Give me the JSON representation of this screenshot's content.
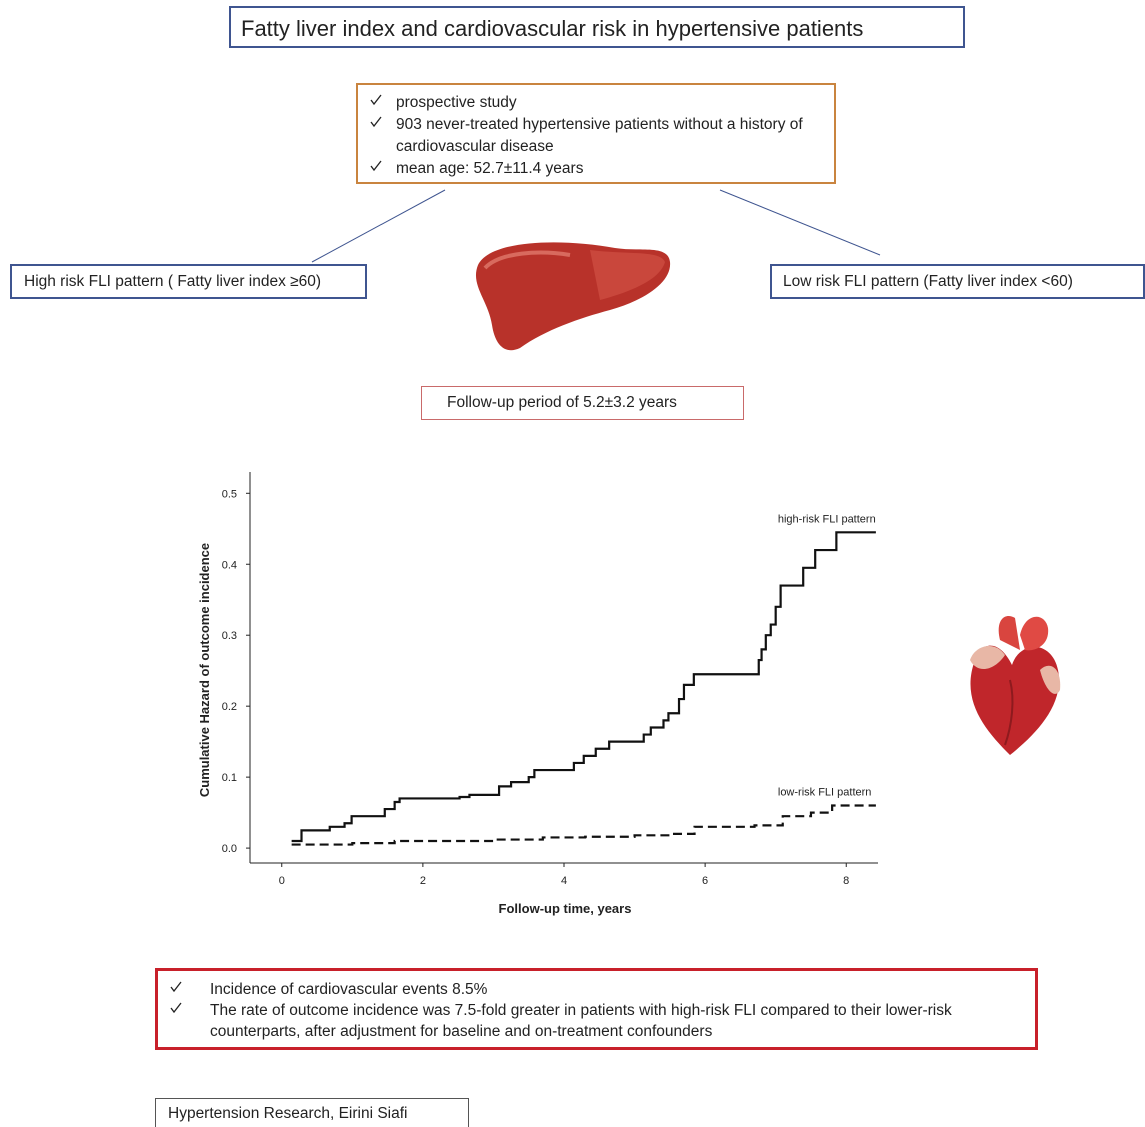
{
  "title": "Fatty liver index and cardiovascular risk in hypertensive patients",
  "study_box": {
    "items": [
      "prospective study",
      "903 never-treated hypertensive patients without a history of cardiovascular disease",
      "mean age: 52.7±11.4 years"
    ]
  },
  "high_risk_box": "High risk FLI pattern ( Fatty liver index ≥60)",
  "low_risk_box": "Low risk FLI pattern (Fatty liver index <60)",
  "follow_up": "Follow-up period of 5.2±3.2 years",
  "chart_data": {
    "type": "line",
    "drawstyle": "steps-post",
    "x_label": "Follow-up time, years",
    "y_label": "Cumulative Hazard of outcome incidence",
    "xlim": [
      -0.45,
      8.45
    ],
    "xticks": [
      0,
      2,
      4,
      6,
      8
    ],
    "ylim": [
      -0.021,
      0.53
    ],
    "yticks": [
      {
        "value": 0,
        "label": "0.0"
      },
      0.1,
      0.2,
      0.3,
      0.4,
      0.5
    ],
    "series": [
      {
        "name": "high-risk FLI pattern",
        "color": "#111111",
        "linestyle": "solid",
        "x": [
          0.14,
          0.28,
          0.68,
          0.89,
          0.99,
          1.46,
          1.6,
          1.67,
          2.52,
          2.66,
          3.08,
          3.25,
          3.5,
          3.58,
          4.14,
          4.28,
          4.45,
          4.64,
          5.13,
          5.23,
          5.41,
          5.48,
          5.63,
          5.7,
          5.84,
          6.76,
          6.8,
          6.86,
          6.93,
          7.0,
          7.07,
          7.39,
          7.56,
          7.86,
          8.42
        ],
        "values": [
          0.01,
          0.025,
          0.03,
          0.035,
          0.045,
          0.055,
          0.065,
          0.07,
          0.072,
          0.075,
          0.087,
          0.093,
          0.1,
          0.11,
          0.12,
          0.13,
          0.14,
          0.15,
          0.16,
          0.17,
          0.18,
          0.19,
          0.21,
          0.23,
          0.245,
          0.265,
          0.28,
          0.3,
          0.315,
          0.34,
          0.37,
          0.395,
          0.42,
          0.445,
          0.445
        ]
      },
      {
        "name": "low-risk FLI pattern",
        "color": "#111111",
        "linestyle": "dashed",
        "x": [
          0.14,
          1.0,
          1.6,
          3.0,
          3.7,
          4.3,
          5.0,
          5.5,
          5.85,
          6.7,
          7.1,
          7.5,
          7.8,
          8.42
        ],
        "values": [
          0.005,
          0.007,
          0.01,
          0.012,
          0.015,
          0.016,
          0.018,
          0.02,
          0.03,
          0.032,
          0.045,
          0.05,
          0.06,
          0.06
        ]
      }
    ]
  },
  "findings": {
    "items": [
      "Incidence of cardiovascular events 8.5%",
      "The rate of outcome incidence was 7.5-fold greater in patients with high-risk FLI compared to their lower-risk counterparts, after adjustment for baseline and on-treatment confounders"
    ]
  },
  "footer": "Hypertension Research, Eirini Siafi"
}
